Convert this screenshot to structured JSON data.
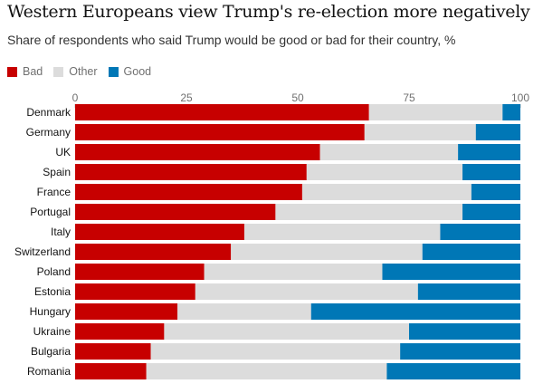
{
  "chart_data": {
    "type": "bar",
    "orientation": "horizontal",
    "stacked": true,
    "title": "Western Europeans view Trump's re-election more negatively",
    "subtitle": "Share of respondents who said Trump would be good or bad for their country, %",
    "xlim": [
      0,
      100
    ],
    "xticks": [
      0,
      25,
      50,
      75,
      100
    ],
    "categories": [
      "Denmark",
      "Germany",
      "UK",
      "Spain",
      "France",
      "Portugal",
      "Italy",
      "Switzerland",
      "Poland",
      "Estonia",
      "Hungary",
      "Ukraine",
      "Bulgaria",
      "Romania"
    ],
    "series": [
      {
        "name": "Bad",
        "color": "#c70000",
        "values": [
          66,
          65,
          55,
          52,
          51,
          45,
          38,
          35,
          29,
          27,
          23,
          20,
          17,
          16
        ]
      },
      {
        "name": "Other",
        "color": "#dcdcdc",
        "values": [
          30,
          25,
          31,
          35,
          38,
          42,
          44,
          43,
          40,
          50,
          30,
          55,
          56,
          54
        ]
      },
      {
        "name": "Good",
        "color": "#0077b6",
        "values": [
          4,
          10,
          14,
          13,
          11,
          13,
          18,
          22,
          31,
          23,
          47,
          25,
          27,
          30
        ]
      }
    ]
  }
}
